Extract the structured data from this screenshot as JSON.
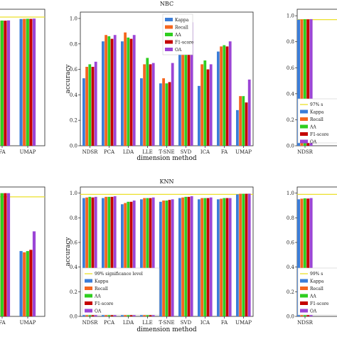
{
  "colors": {
    "Kappa": "#3b7dd8",
    "Recall": "#f5651e",
    "AA": "#2fce1f",
    "F1-score": "#c40000",
    "OA": "#9b45d6",
    "significance": "#ece02a"
  },
  "chart_data": [
    {
      "type": "bar",
      "title": "",
      "xlabel": "",
      "ylabel": "",
      "categories": [
        "FA",
        "UMAP"
      ],
      "ylim": [
        0,
        1.05
      ],
      "significance": 0.99,
      "series": [
        {
          "name": "",
          "values": [
            0.96,
            0.975
          ]
        },
        {
          "name": "",
          "values": [
            0.962,
            0.976
          ]
        },
        {
          "name": "",
          "values": [
            0.963,
            0.977
          ]
        },
        {
          "name": "",
          "values": [
            0.962,
            0.976
          ]
        },
        {
          "name": "",
          "values": [
            0.964,
            0.978
          ]
        }
      ]
    },
    {
      "type": "bar",
      "title": "NBC",
      "xlabel": "dimension method",
      "ylabel": "accuracy",
      "categories": [
        "NDSR",
        "PCA",
        "LDA",
        "LLE",
        "T-SNE",
        "SVD",
        "ICA",
        "FA",
        "UMAP"
      ],
      "yticks": [
        "0.0",
        "0.2",
        "0.4",
        "0.6",
        "0.8",
        "1.0"
      ],
      "ylim": [
        0,
        1.05
      ],
      "legend": "top-left",
      "series": [
        {
          "name": "Kappa",
          "values": [
            0.53,
            0.82,
            0.82,
            0.53,
            0.49,
            0.75,
            0.47,
            0.74,
            0.28
          ]
        },
        {
          "name": "Recall",
          "values": [
            0.62,
            0.87,
            0.89,
            0.64,
            0.53,
            0.87,
            0.64,
            0.78,
            0.39
          ]
        },
        {
          "name": "AA",
          "values": [
            0.64,
            0.86,
            0.85,
            0.69,
            0.49,
            0.84,
            0.67,
            0.79,
            0.39
          ]
        },
        {
          "name": "F1-score",
          "values": [
            0.62,
            0.84,
            0.84,
            0.64,
            0.5,
            0.85,
            0.6,
            0.78,
            0.34
          ]
        },
        {
          "name": "OA",
          "values": [
            0.66,
            0.87,
            0.87,
            0.65,
            0.65,
            0.97,
            0.64,
            0.82,
            0.52
          ]
        }
      ]
    },
    {
      "type": "bar",
      "title": "",
      "xlabel": "",
      "ylabel": "",
      "categories": [
        "NDSR"
      ],
      "yticks": [
        "0.0",
        "0.2",
        "0.4",
        "0.6",
        "0.8",
        "1.0"
      ],
      "ylim": [
        0,
        1.05
      ],
      "significance": 0.97,
      "legend": "bottom-left",
      "legend_entries": [
        "97% s",
        "Kappa",
        "Recall",
        "AA",
        "F1-score",
        "OA"
      ],
      "series": [
        {
          "name": "Kappa",
          "values": [
            0.97
          ]
        },
        {
          "name": "Recall",
          "values": [
            0.972
          ]
        },
        {
          "name": "AA",
          "values": [
            0.973
          ]
        },
        {
          "name": "F1-score",
          "values": [
            0.972
          ]
        },
        {
          "name": "OA",
          "values": [
            0.974
          ]
        }
      ]
    },
    {
      "type": "bar",
      "title": "",
      "xlabel": "",
      "ylabel": "",
      "categories": [
        "FA",
        "UMAP"
      ],
      "ylim": [
        0,
        1.05
      ],
      "significance": 0.97,
      "series": [
        {
          "name": "",
          "values": [
            1.0,
            0.53
          ]
        },
        {
          "name": "",
          "values": [
            1.0,
            0.52
          ]
        },
        {
          "name": "",
          "values": [
            1.0,
            0.53
          ]
        },
        {
          "name": "",
          "values": [
            1.0,
            0.54
          ]
        },
        {
          "name": "",
          "values": [
            1.0,
            0.69
          ]
        }
      ]
    },
    {
      "type": "bar",
      "title": "KNN",
      "xlabel": "dimension method",
      "ylabel": "accuracy",
      "categories": [
        "NDSR",
        "PCA",
        "LDA",
        "LLE",
        "T-SNE",
        "SVD",
        "ICA",
        "FA",
        "UMAP"
      ],
      "yticks": [
        "0.0",
        "0.2",
        "0.4",
        "0.6",
        "0.8",
        "1.0"
      ],
      "ylim": [
        0,
        1.05
      ],
      "significance": 0.99,
      "legend": "bottom-left",
      "legend_entries": [
        "99% significance level",
        "Kappa",
        "Recall",
        "AA",
        "F1-score",
        "OA"
      ],
      "series": [
        {
          "name": "Kappa",
          "values": [
            0.96,
            0.96,
            0.91,
            0.95,
            0.93,
            0.96,
            0.95,
            0.95,
            0.99
          ]
        },
        {
          "name": "Recall",
          "values": [
            0.965,
            0.97,
            0.92,
            0.96,
            0.94,
            0.965,
            0.96,
            0.955,
            0.995
          ]
        },
        {
          "name": "AA",
          "values": [
            0.97,
            0.97,
            0.93,
            0.96,
            0.94,
            0.97,
            0.96,
            0.96,
            0.995
          ]
        },
        {
          "name": "F1-score",
          "values": [
            0.965,
            0.97,
            0.93,
            0.96,
            0.945,
            0.97,
            0.96,
            0.96,
            0.995
          ]
        },
        {
          "name": "OA",
          "values": [
            0.97,
            0.975,
            0.94,
            0.965,
            0.95,
            0.975,
            0.965,
            0.96,
            0.996
          ]
        }
      ]
    },
    {
      "type": "bar",
      "title": "",
      "xlabel": "",
      "ylabel": "",
      "categories": [
        "NDSR"
      ],
      "yticks": [
        "0.0",
        "0.2",
        "0.4",
        "0.6",
        "0.8",
        "1.0"
      ],
      "ylim": [
        0,
        1.05
      ],
      "significance": 0.99,
      "legend": "bottom-left",
      "legend_entries": [
        "99% s",
        "Kappa",
        "Recall",
        "AA",
        "F1-score",
        "OA"
      ],
      "series": [
        {
          "name": "Kappa",
          "values": [
            0.95
          ]
        },
        {
          "name": "Recall",
          "values": [
            0.955
          ]
        },
        {
          "name": "AA",
          "values": [
            0.958
          ]
        },
        {
          "name": "F1-score",
          "values": [
            0.956
          ]
        },
        {
          "name": "OA",
          "values": [
            0.96
          ]
        }
      ]
    }
  ]
}
